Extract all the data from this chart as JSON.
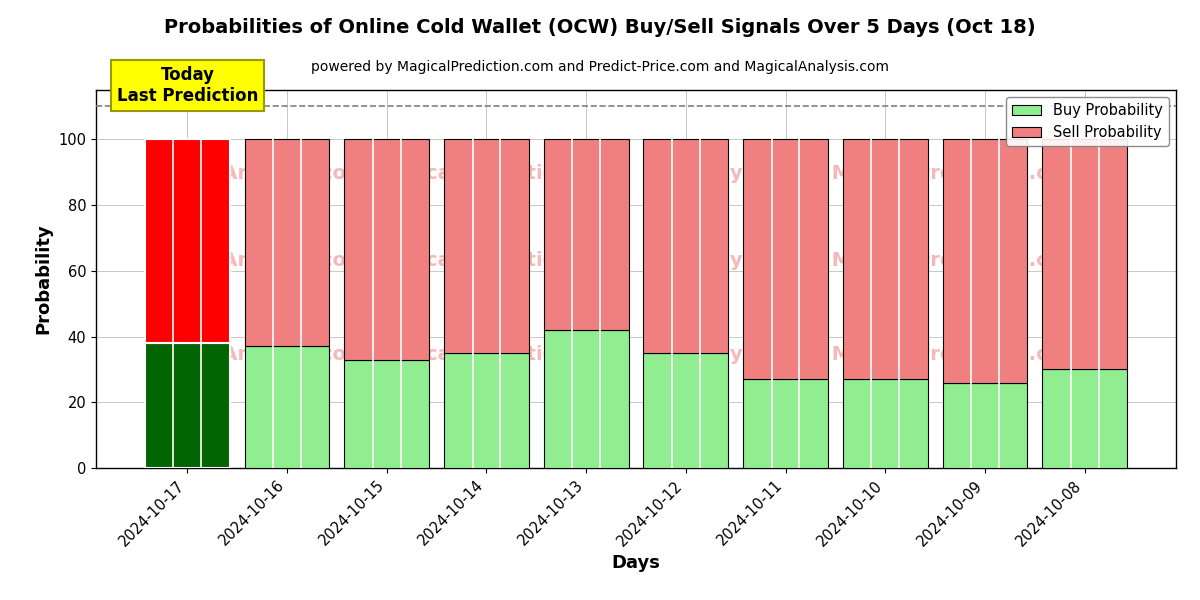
{
  "title": "Probabilities of Online Cold Wallet (OCW) Buy/Sell Signals Over 5 Days (Oct 18)",
  "subtitle": "powered by MagicalPrediction.com and Predict-Price.com and MagicalAnalysis.com",
  "xlabel": "Days",
  "ylabel": "Probability",
  "categories": [
    "2024-10-17",
    "2024-10-16",
    "2024-10-15",
    "2024-10-14",
    "2024-10-13",
    "2024-10-12",
    "2024-10-11",
    "2024-10-10",
    "2024-10-09",
    "2024-10-08"
  ],
  "buy_values": [
    38,
    37,
    33,
    35,
    42,
    35,
    27,
    27,
    26,
    30
  ],
  "sell_values": [
    62,
    63,
    67,
    65,
    58,
    65,
    73,
    73,
    74,
    70
  ],
  "today_buy_color": "#006400",
  "today_sell_color": "#FF0000",
  "buy_color": "#90EE90",
  "sell_color": "#F08080",
  "today_label_bg": "#FFFF00",
  "today_label_text": "Today\nLast Prediction",
  "ylim": [
    0,
    115
  ],
  "yticks": [
    0,
    20,
    40,
    60,
    80,
    100
  ],
  "dashed_line_y": 110,
  "figsize": [
    12,
    6
  ],
  "dpi": 100,
  "bar_width": 0.85
}
